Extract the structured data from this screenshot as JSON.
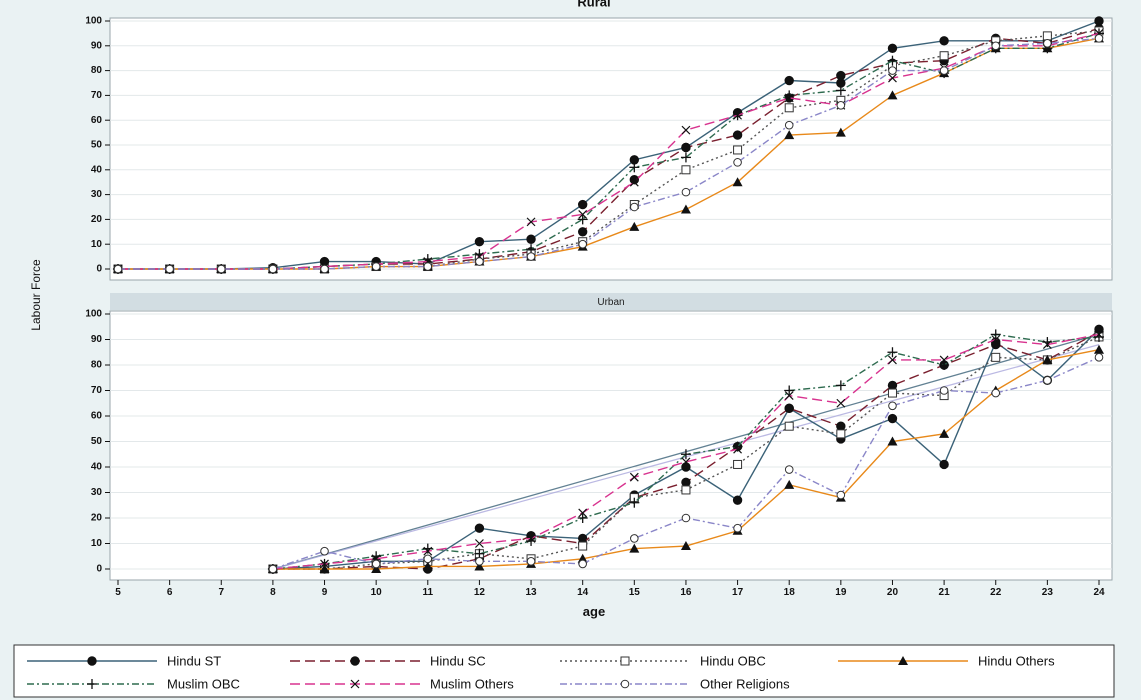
{
  "chart_data": {
    "type": "line",
    "xlabel": "age",
    "ylabel": "Labour Force",
    "xlim": [
      5,
      24
    ],
    "ylim": [
      0,
      100
    ],
    "x_ticks": [
      5,
      6,
      7,
      8,
      9,
      10,
      11,
      12,
      13,
      14,
      15,
      16,
      17,
      18,
      19,
      20,
      21,
      22,
      23,
      24
    ],
    "y_ticks": [
      0,
      10,
      20,
      30,
      40,
      50,
      60,
      70,
      80,
      90,
      100
    ],
    "grid": true,
    "legend_position": "bottom",
    "panels": [
      {
        "title": "Rural",
        "series": [
          {
            "name": "Hindu ST",
            "color": "#3b6278",
            "marker": "filled-circle",
            "dash": "solid",
            "x": [
              5,
              6,
              7,
              8,
              9,
              10,
              11,
              12,
              13,
              14,
              15,
              16,
              17,
              18,
              19,
              20,
              21,
              22,
              23,
              24
            ],
            "y": [
              0,
              0,
              0,
              0.5,
              3,
              3,
              2,
              11,
              12,
              26,
              44,
              49,
              63,
              76,
              75,
              89,
              92,
              92,
              92,
              100
            ]
          },
          {
            "name": "Hindu SC",
            "color": "#7a1f2e",
            "marker": "filled-circle",
            "dash": "long-dash",
            "x": [
              5,
              6,
              7,
              8,
              9,
              10,
              11,
              12,
              13,
              14,
              15,
              16,
              17,
              18,
              19,
              20,
              21,
              22,
              23,
              24
            ],
            "y": [
              0,
              0,
              0,
              0,
              1,
              2,
              2,
              4,
              7,
              15,
              36,
              49,
              54,
              69,
              78,
              83,
              84,
              93,
              91,
              97
            ]
          },
          {
            "name": "Hindu OBC",
            "color": "#555555",
            "marker": "hollow-square",
            "dash": "dotted",
            "x": [
              5,
              6,
              7,
              8,
              9,
              10,
              11,
              12,
              13,
              14,
              15,
              16,
              17,
              18,
              19,
              20,
              21,
              22,
              23,
              24
            ],
            "y": [
              0,
              0,
              0,
              0,
              0,
              1,
              1,
              4,
              6,
              11,
              26,
              40,
              48,
              65,
              68,
              82,
              86,
              92,
              94,
              96
            ]
          },
          {
            "name": "Hindu Others",
            "color": "#e8891a",
            "marker": "filled-triangle",
            "dash": "solid",
            "x": [
              5,
              6,
              7,
              8,
              9,
              10,
              11,
              12,
              13,
              14,
              15,
              16,
              17,
              18,
              19,
              20,
              21,
              22,
              23,
              24
            ],
            "y": [
              0,
              0,
              0,
              0,
              0,
              1,
              1,
              3,
              5,
              9,
              17,
              24,
              35,
              54,
              55,
              70,
              79,
              89,
              89,
              93
            ]
          },
          {
            "name": "Muslim OBC",
            "color": "#2e6b4f",
            "marker": "plus",
            "dash": "dash-dot",
            "x": [
              5,
              6,
              7,
              8,
              9,
              10,
              11,
              12,
              13,
              14,
              15,
              16,
              17,
              18,
              19,
              20,
              21,
              22,
              23,
              24
            ],
            "y": [
              0,
              0,
              0,
              0,
              1,
              2,
              4,
              6,
              8,
              20,
              41,
              45,
              62,
              70,
              72,
              84,
              79,
              89,
              89,
              95
            ]
          },
          {
            "name": "Muslim Others",
            "color": "#d8338f",
            "marker": "x",
            "dash": "long-dash",
            "x": [
              5,
              6,
              7,
              8,
              9,
              10,
              11,
              12,
              13,
              14,
              15,
              16,
              17,
              18,
              19,
              20,
              21,
              22,
              23,
              24
            ],
            "y": [
              0,
              0,
              0,
              0,
              1,
              2,
              3,
              5,
              19,
              22,
              35,
              56,
              62,
              69,
              66,
              77,
              81,
              90,
              90,
              95
            ]
          },
          {
            "name": "Other Religions",
            "color": "#8a86c8",
            "marker": "hollow-diamond",
            "dash": "dash-dot",
            "x": [
              5,
              6,
              7,
              8,
              9,
              10,
              11,
              12,
              13,
              14,
              15,
              16,
              17,
              18,
              19,
              20,
              21,
              22,
              23,
              24
            ],
            "y": [
              0,
              0,
              0,
              0,
              0,
              1,
              1,
              3,
              5,
              10,
              25,
              31,
              43,
              58,
              66,
              80,
              80,
              90,
              91,
              93
            ]
          }
        ]
      },
      {
        "title": "Urban",
        "series": [
          {
            "name": "Hindu ST",
            "color": "#3b6278",
            "marker": "filled-circle",
            "dash": "solid",
            "x": [
              8,
              9,
              10,
              11,
              12,
              13,
              14,
              15,
              16,
              17,
              18,
              19,
              20,
              21,
              22,
              23,
              24
            ],
            "y": [
              0,
              1,
              3,
              3,
              16,
              13,
              12,
              29,
              40,
              27,
              63,
              51,
              59,
              41,
              89,
              74,
              94
            ]
          },
          {
            "name": "Hindu SC",
            "color": "#7a1f2e",
            "marker": "filled-circle",
            "dash": "long-dash",
            "x": [
              8,
              9,
              10,
              11,
              12,
              13,
              14,
              15,
              16,
              17,
              18,
              19,
              20,
              21,
              22,
              23,
              24
            ],
            "y": [
              0,
              0,
              1,
              0,
              4,
              13,
              10,
              28,
              34,
              48,
              63,
              56,
              72,
              80,
              88,
              82,
              93
            ]
          },
          {
            "name": "Hindu OBC",
            "color": "#555555",
            "marker": "hollow-square",
            "dash": "dotted",
            "x": [
              8,
              9,
              10,
              11,
              12,
              13,
              14,
              15,
              16,
              17,
              18,
              19,
              20,
              21,
              22,
              23,
              24
            ],
            "y": [
              0,
              0,
              2,
              3,
              6,
              4,
              9,
              28,
              31,
              41,
              56,
              53,
              69,
              68,
              83,
              82,
              91
            ]
          },
          {
            "name": "Hindu Others",
            "color": "#e8891a",
            "marker": "filled-triangle",
            "dash": "solid",
            "x": [
              8,
              9,
              10,
              11,
              12,
              13,
              14,
              15,
              16,
              17,
              18,
              19,
              20,
              21,
              22,
              23,
              24
            ],
            "y": [
              0,
              0,
              0,
              1,
              1,
              2,
              4,
              8,
              9,
              15,
              33,
              28,
              50,
              53,
              70,
              82,
              86
            ]
          },
          {
            "name": "Muslim OBC",
            "color": "#2e6b4f",
            "marker": "plus",
            "dash": "dash-dot",
            "x": [
              8,
              9,
              10,
              11,
              12,
              13,
              14,
              15,
              16,
              17,
              18,
              19,
              20,
              21,
              22,
              23,
              24
            ],
            "y": [
              0,
              2,
              5,
              8,
              6,
              11,
              20,
              26,
              45,
              48,
              70,
              72,
              85,
              80,
              92,
              89,
              91
            ]
          },
          {
            "name": "Muslim Others",
            "color": "#d8338f",
            "marker": "x",
            "dash": "long-dash",
            "x": [
              8,
              9,
              10,
              11,
              12,
              13,
              14,
              15,
              16,
              17,
              18,
              19,
              20,
              21,
              22,
              23,
              24
            ],
            "y": [
              0,
              2,
              4,
              7,
              10,
              12,
              22,
              36,
              42,
              47,
              68,
              65,
              82,
              82,
              90,
              88,
              92
            ]
          },
          {
            "name": "Other Religions",
            "color": "#8a86c8",
            "marker": "hollow-diamond",
            "dash": "dash-dot",
            "x": [
              8,
              9,
              10,
              11,
              12,
              13,
              14,
              15,
              16,
              17,
              18,
              19,
              20,
              21,
              22,
              23,
              24
            ],
            "y": [
              0,
              7,
              2,
              4,
              3,
              3,
              2,
              12,
              20,
              16,
              39,
              29,
              64,
              70,
              69,
              74,
              83
            ]
          }
        ],
        "fit_lines": [
          {
            "color": "#3b6278",
            "x": [
              8,
              24
            ],
            "y": [
              0,
              92
            ]
          },
          {
            "color": "#aaa8dc",
            "x": [
              8,
              24
            ],
            "y": [
              0,
              88
            ]
          }
        ]
      }
    ]
  },
  "legend_row1": [
    "Hindu ST",
    "Hindu SC",
    "Hindu OBC",
    "Hindu Others"
  ],
  "legend_row2": [
    "Muslim OBC",
    "Muslim Others",
    "Other Religions"
  ]
}
